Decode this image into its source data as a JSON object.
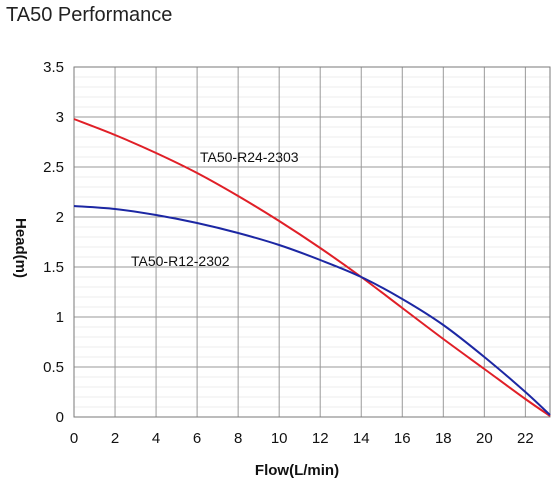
{
  "chart_data": {
    "type": "line",
    "title": "TA50 Performance",
    "xlabel": "Flow(L/min)",
    "ylabel": "Head(m)",
    "xlim": [
      0,
      23.2
    ],
    "ylim": [
      0,
      3.5
    ],
    "x_ticks": [
      "0",
      "2",
      "4",
      "6",
      "8",
      "10",
      "12",
      "14",
      "16",
      "18",
      "20",
      "22"
    ],
    "y_ticks": [
      "0",
      "0.5",
      "1",
      "1.5",
      "2",
      "2.5",
      "3",
      "3.5"
    ],
    "grid": true,
    "series": [
      {
        "name": "TA50-R24-2303",
        "color": "#e01f27",
        "x": [
          0,
          2,
          4,
          6,
          8,
          10,
          12,
          14,
          16,
          18,
          20,
          22,
          23.2
        ],
        "y": [
          2.98,
          2.82,
          2.64,
          2.44,
          2.21,
          1.96,
          1.69,
          1.4,
          1.09,
          0.78,
          0.48,
          0.18,
          0.01
        ]
      },
      {
        "name": "TA50-R12-2302",
        "color": "#1c27a3",
        "x": [
          0,
          2,
          4,
          6,
          8,
          10,
          12,
          14,
          16,
          18,
          20,
          22,
          23.2
        ],
        "y": [
          2.11,
          2.08,
          2.02,
          1.94,
          1.84,
          1.72,
          1.57,
          1.4,
          1.18,
          0.92,
          0.6,
          0.25,
          0.02
        ]
      }
    ]
  }
}
